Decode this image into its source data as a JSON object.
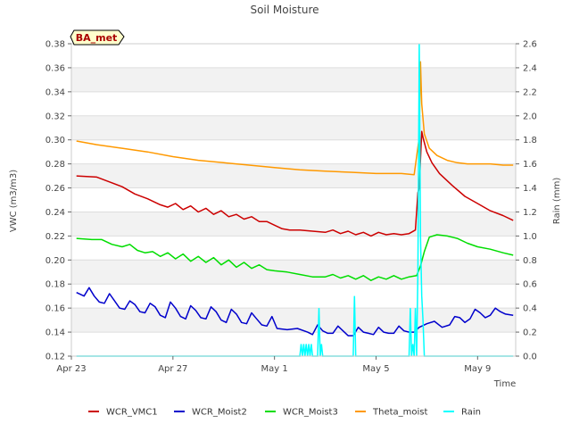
{
  "chart_data": {
    "type": "line",
    "title": "Soil Moisture",
    "xlabel": "Time",
    "ylabel": "VWC (m3/m3)",
    "y2label": "Rain (mm)",
    "site_label": "BA_met",
    "xlim": [
      0,
      17.5
    ],
    "ylim": [
      0.12,
      0.38
    ],
    "y2lim": [
      0.0,
      2.6
    ],
    "x_ticks": [
      {
        "x": 0,
        "label": "Apr 23"
      },
      {
        "x": 4,
        "label": "Apr 27"
      },
      {
        "x": 8,
        "label": "May 1"
      },
      {
        "x": 12,
        "label": "May 5"
      },
      {
        "x": 16,
        "label": "May 9"
      }
    ],
    "y_ticks": [
      "0.12",
      "0.14",
      "0.16",
      "0.18",
      "0.20",
      "0.22",
      "0.24",
      "0.26",
      "0.28",
      "0.30",
      "0.32",
      "0.34",
      "0.36",
      "0.38"
    ],
    "y2_ticks": [
      "0.0",
      "0.2",
      "0.4",
      "0.6",
      "0.8",
      "1.0",
      "1.2",
      "1.4",
      "1.6",
      "1.8",
      "2.0",
      "2.2",
      "2.4",
      "2.6"
    ],
    "grid": "horizontal bands",
    "legend_position": "bottom",
    "series": [
      {
        "name": "WCR_VMC1",
        "color": "#cc0000",
        "axis": "left",
        "x": [
          0.2,
          1.0,
          1.5,
          2.0,
          2.5,
          3.0,
          3.5,
          3.8,
          4.1,
          4.4,
          4.7,
          5.0,
          5.3,
          5.6,
          5.9,
          6.2,
          6.5,
          6.8,
          7.1,
          7.4,
          7.7,
          8.0,
          8.3,
          8.6,
          9.0,
          9.5,
          10.0,
          10.3,
          10.6,
          10.9,
          11.2,
          11.5,
          11.8,
          12.1,
          12.4,
          12.7,
          13.0,
          13.3,
          13.55,
          13.65,
          13.7,
          13.8,
          13.85,
          14.0,
          14.2,
          14.5,
          15.0,
          15.5,
          16.0,
          16.5,
          17.0,
          17.4
        ],
        "values": [
          0.27,
          0.269,
          0.265,
          0.261,
          0.255,
          0.251,
          0.246,
          0.244,
          0.247,
          0.242,
          0.245,
          0.24,
          0.243,
          0.238,
          0.241,
          0.236,
          0.238,
          0.234,
          0.236,
          0.232,
          0.232,
          0.229,
          0.226,
          0.225,
          0.225,
          0.224,
          0.223,
          0.225,
          0.222,
          0.224,
          0.221,
          0.223,
          0.22,
          0.223,
          0.221,
          0.222,
          0.221,
          0.222,
          0.225,
          0.256,
          0.26,
          0.307,
          0.302,
          0.29,
          0.281,
          0.272,
          0.262,
          0.253,
          0.247,
          0.241,
          0.237,
          0.233
        ]
      },
      {
        "name": "WCR_Moist2",
        "color": "#0000cc",
        "axis": "left",
        "x": [
          0.2,
          0.5,
          0.7,
          0.9,
          1.1,
          1.3,
          1.5,
          1.7,
          1.9,
          2.1,
          2.3,
          2.5,
          2.7,
          2.9,
          3.1,
          3.3,
          3.5,
          3.7,
          3.9,
          4.1,
          4.3,
          4.5,
          4.7,
          4.9,
          5.1,
          5.3,
          5.5,
          5.7,
          5.9,
          6.1,
          6.3,
          6.5,
          6.7,
          6.9,
          7.1,
          7.3,
          7.5,
          7.7,
          7.9,
          8.1,
          8.5,
          8.9,
          9.3,
          9.5,
          9.7,
          9.9,
          10.1,
          10.3,
          10.5,
          10.7,
          10.9,
          11.1,
          11.3,
          11.5,
          11.7,
          11.9,
          12.1,
          12.3,
          12.5,
          12.7,
          12.9,
          13.1,
          13.3,
          13.5,
          13.7,
          14.0,
          14.3,
          14.6,
          14.9,
          15.1,
          15.3,
          15.5,
          15.7,
          15.9,
          16.1,
          16.3,
          16.5,
          16.7,
          16.9,
          17.1,
          17.4
        ],
        "values": [
          0.173,
          0.17,
          0.177,
          0.17,
          0.165,
          0.164,
          0.172,
          0.166,
          0.16,
          0.159,
          0.166,
          0.163,
          0.157,
          0.156,
          0.164,
          0.161,
          0.154,
          0.152,
          0.165,
          0.16,
          0.153,
          0.151,
          0.162,
          0.158,
          0.152,
          0.151,
          0.161,
          0.157,
          0.15,
          0.148,
          0.159,
          0.155,
          0.148,
          0.147,
          0.156,
          0.151,
          0.146,
          0.145,
          0.153,
          0.143,
          0.142,
          0.143,
          0.14,
          0.138,
          0.146,
          0.141,
          0.139,
          0.139,
          0.145,
          0.141,
          0.137,
          0.137,
          0.144,
          0.14,
          0.139,
          0.138,
          0.144,
          0.14,
          0.139,
          0.139,
          0.145,
          0.141,
          0.14,
          0.14,
          0.144,
          0.147,
          0.149,
          0.144,
          0.146,
          0.153,
          0.152,
          0.148,
          0.151,
          0.159,
          0.156,
          0.152,
          0.154,
          0.16,
          0.157,
          0.155,
          0.154
        ]
      },
      {
        "name": "WCR_Moist3",
        "color": "#00dd00",
        "axis": "left",
        "x": [
          0.2,
          0.8,
          1.2,
          1.6,
          2.0,
          2.3,
          2.6,
          2.9,
          3.2,
          3.5,
          3.8,
          4.1,
          4.4,
          4.7,
          5.0,
          5.3,
          5.6,
          5.9,
          6.2,
          6.5,
          6.8,
          7.1,
          7.4,
          7.7,
          8.0,
          8.5,
          9.0,
          9.5,
          10.0,
          10.3,
          10.6,
          10.9,
          11.2,
          11.5,
          11.8,
          12.1,
          12.4,
          12.7,
          13.0,
          13.3,
          13.6,
          13.75,
          13.9,
          14.1,
          14.4,
          14.8,
          15.2,
          15.6,
          16.0,
          16.5,
          17.0,
          17.4
        ],
        "values": [
          0.218,
          0.217,
          0.217,
          0.213,
          0.211,
          0.213,
          0.208,
          0.206,
          0.207,
          0.203,
          0.206,
          0.201,
          0.205,
          0.199,
          0.203,
          0.198,
          0.202,
          0.196,
          0.2,
          0.194,
          0.198,
          0.193,
          0.196,
          0.192,
          0.191,
          0.19,
          0.188,
          0.186,
          0.186,
          0.188,
          0.185,
          0.187,
          0.184,
          0.187,
          0.183,
          0.186,
          0.184,
          0.187,
          0.184,
          0.186,
          0.187,
          0.195,
          0.207,
          0.219,
          0.221,
          0.22,
          0.218,
          0.214,
          0.211,
          0.209,
          0.206,
          0.204
        ]
      },
      {
        "name": "Theta_moist",
        "color": "#ff9900",
        "axis": "left",
        "x": [
          0.2,
          1.0,
          2.0,
          3.0,
          4.0,
          5.0,
          6.0,
          7.0,
          8.0,
          9.0,
          10.0,
          11.0,
          12.0,
          13.0,
          13.5,
          13.7,
          13.75,
          13.8,
          13.9,
          14.1,
          14.4,
          14.8,
          15.2,
          15.6,
          16.0,
          16.5,
          17.0,
          17.4
        ],
        "values": [
          0.299,
          0.296,
          0.293,
          0.29,
          0.286,
          0.283,
          0.281,
          0.279,
          0.277,
          0.275,
          0.274,
          0.273,
          0.272,
          0.272,
          0.271,
          0.302,
          0.365,
          0.33,
          0.305,
          0.293,
          0.287,
          0.283,
          0.281,
          0.28,
          0.28,
          0.28,
          0.279,
          0.279
        ]
      },
      {
        "name": "Rain",
        "color": "#00ffff",
        "axis": "right",
        "x": [
          0.2,
          9.0,
          9.05,
          9.1,
          9.15,
          9.2,
          9.25,
          9.3,
          9.35,
          9.4,
          9.45,
          9.5,
          9.55,
          9.7,
          9.75,
          9.8,
          9.85,
          9.9,
          10.0,
          11.0,
          11.1,
          11.15,
          11.2,
          11.3,
          12.0,
          13.3,
          13.35,
          13.4,
          13.45,
          13.5,
          13.55,
          13.6,
          13.65,
          13.7,
          13.75,
          13.8,
          13.85,
          13.9,
          13.95,
          14.0,
          17.4
        ],
        "values": [
          0.0,
          0.0,
          0.1,
          0.0,
          0.1,
          0.0,
          0.1,
          0.0,
          0.1,
          0.0,
          0.1,
          0.0,
          0.0,
          0.0,
          0.4,
          0.0,
          0.1,
          0.0,
          0.0,
          0.0,
          0.0,
          0.5,
          0.0,
          0.0,
          0.0,
          0.0,
          0.4,
          0.0,
          0.1,
          0.0,
          0.4,
          0.0,
          0.7,
          2.6,
          1.0,
          0.5,
          0.3,
          0.0,
          0.0,
          0.0,
          0.0
        ]
      }
    ]
  }
}
